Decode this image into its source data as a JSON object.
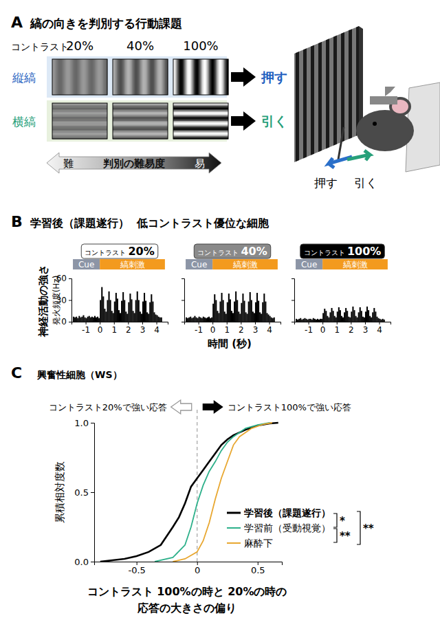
{
  "panel_a": {
    "label": "A",
    "title": "縞の向きを判別する行動課題",
    "contrast_label": "コントラスト",
    "contrasts": [
      {
        "value": 20,
        "label": "20%"
      },
      {
        "value": 40,
        "label": "40%"
      },
      {
        "value": 100,
        "label": "100%"
      }
    ],
    "rows": [
      {
        "label": "縦縞",
        "action": "押す",
        "orientation": "vertical"
      },
      {
        "label": "横縞",
        "action": "引く",
        "orientation": "horizontal"
      }
    ],
    "difficulty": {
      "hard": "難",
      "label": "判別の難易度",
      "easy": "易"
    },
    "mouse_actions": [
      "押す",
      "引く"
    ]
  },
  "panel_b": {
    "label": "B",
    "title": "学習後（課題遂行）  低コントラスト優位な細胞",
    "ylabel": "神経活動の強さ",
    "ylabel_unit": "発火頻度(Hz)",
    "xlabel": "時間 (秒)"
  },
  "panel_c": {
    "label": "C"
  },
  "chart_data": [
    {
      "type": "histogram",
      "title": "コントラスト 20%",
      "color": "#000000",
      "bins": [
        -1.9,
        -1.8,
        -1.7,
        -1.6,
        -1.5,
        -1.4,
        -1.3,
        -1.2,
        -1.1,
        -1.0,
        -0.9,
        -0.8,
        -0.7,
        -0.6,
        -0.5,
        -0.4,
        -0.3,
        -0.2,
        -0.1,
        0,
        0.1,
        0.2,
        0.3,
        0.4,
        0.5,
        0.6,
        0.7,
        0.8,
        0.9,
        1.0,
        1.1,
        1.2,
        1.3,
        1.4,
        1.5,
        1.6,
        1.7,
        1.8,
        1.9,
        2.0,
        2.1,
        2.2,
        2.3,
        2.4,
        2.5,
        2.6,
        2.7,
        2.8,
        2.9,
        3.0,
        3.1,
        3.2,
        3.3,
        3.4,
        3.5,
        3.6,
        3.7,
        3.8,
        3.9,
        4.0,
        4.1,
        4.2,
        4.3,
        4.4
      ],
      "values": [
        7,
        6,
        7,
        5,
        8,
        6,
        7,
        9,
        6,
        5,
        7,
        8,
        6,
        7,
        6,
        8,
        6,
        7,
        5,
        30,
        48,
        35,
        18,
        14,
        30,
        42,
        30,
        15,
        12,
        28,
        40,
        32,
        16,
        12,
        29,
        41,
        30,
        14,
        11,
        27,
        39,
        31,
        15,
        12,
        30,
        42,
        30,
        14,
        11,
        28,
        40,
        29,
        13,
        11,
        27,
        38,
        28,
        13,
        10,
        9,
        7,
        6,
        6
      ],
      "epochs": [
        {
          "label": "Cue",
          "start": -1.9,
          "end": 0
        },
        {
          "label": "縞刺激",
          "start": 0,
          "end": 4.6
        }
      ],
      "xlim": [
        -2,
        4.8
      ],
      "xticks": [
        -1,
        0,
        1,
        2,
        3,
        4
      ],
      "ylim": [
        0,
        60
      ],
      "yticks": [
        0,
        30,
        60
      ]
    },
    {
      "type": "histogram",
      "title": "コントラスト 40%",
      "color": "#000000",
      "bins": [
        -1.9,
        -1.8,
        -1.7,
        -1.6,
        -1.5,
        -1.4,
        -1.3,
        -1.2,
        -1.1,
        -1.0,
        -0.9,
        -0.8,
        -0.7,
        -0.6,
        -0.5,
        -0.4,
        -0.3,
        -0.2,
        -0.1,
        0,
        0.1,
        0.2,
        0.3,
        0.4,
        0.5,
        0.6,
        0.7,
        0.8,
        0.9,
        1.0,
        1.1,
        1.2,
        1.3,
        1.4,
        1.5,
        1.6,
        1.7,
        1.8,
        1.9,
        2.0,
        2.1,
        2.2,
        2.3,
        2.4,
        2.5,
        2.6,
        2.7,
        2.8,
        2.9,
        3.0,
        3.1,
        3.2,
        3.3,
        3.4,
        3.5,
        3.6,
        3.7,
        3.8,
        3.9,
        4.0,
        4.1,
        4.2,
        4.3,
        4.4
      ],
      "values": [
        6,
        5,
        6,
        7,
        5,
        6,
        8,
        6,
        5,
        7,
        6,
        5,
        7,
        6,
        5,
        6,
        7,
        5,
        6,
        25,
        38,
        30,
        15,
        12,
        28,
        40,
        30,
        14,
        11,
        27,
        39,
        31,
        15,
        12,
        28,
        42,
        30,
        14,
        11,
        26,
        39,
        29,
        13,
        11,
        28,
        41,
        30,
        14,
        12,
        27,
        40,
        29,
        13,
        11,
        27,
        39,
        28,
        12,
        10,
        8,
        6,
        5,
        6
      ],
      "epochs": [
        {
          "label": "Cue",
          "start": -1.9,
          "end": 0
        },
        {
          "label": "縞刺激",
          "start": 0,
          "end": 4.6
        }
      ],
      "xlim": [
        -2,
        4.8
      ],
      "xticks": [
        -1,
        0,
        1,
        2,
        3,
        4
      ],
      "ylim": [
        0,
        60
      ],
      "yticks": [
        0,
        30,
        60
      ],
      "tick_labels": "x"
    },
    {
      "type": "histogram",
      "title": "コントラスト 100%",
      "color": "#000000",
      "bins": [
        -1.9,
        -1.8,
        -1.7,
        -1.6,
        -1.5,
        -1.4,
        -1.3,
        -1.2,
        -1.1,
        -1.0,
        -0.9,
        -0.8,
        -0.7,
        -0.6,
        -0.5,
        -0.4,
        -0.3,
        -0.2,
        -0.1,
        0,
        0.1,
        0.2,
        0.3,
        0.4,
        0.5,
        0.6,
        0.7,
        0.8,
        0.9,
        1.0,
        1.1,
        1.2,
        1.3,
        1.4,
        1.5,
        1.6,
        1.7,
        1.8,
        1.9,
        2.0,
        2.1,
        2.2,
        2.3,
        2.4,
        2.5,
        2.6,
        2.7,
        2.8,
        2.9,
        3.0,
        3.1,
        3.2,
        3.3,
        3.4,
        3.5,
        3.6,
        3.7,
        3.8,
        3.9,
        4.0,
        4.1,
        4.2,
        4.3,
        4.4
      ],
      "values": [
        4,
        3,
        4,
        5,
        3,
        4,
        5,
        4,
        3,
        4,
        4,
        3,
        5,
        4,
        3,
        4,
        3,
        4,
        4,
        12,
        18,
        15,
        8,
        6,
        13,
        19,
        15,
        8,
        6,
        14,
        20,
        16,
        8,
        6,
        13,
        19,
        15,
        7,
        6,
        14,
        21,
        16,
        8,
        6,
        13,
        20,
        15,
        7,
        6,
        14,
        21,
        16,
        8,
        6,
        13,
        19,
        14,
        7,
        5,
        4,
        3,
        4,
        3
      ],
      "epochs": [
        {
          "label": "Cue",
          "start": -1.9,
          "end": 0
        },
        {
          "label": "縞刺激",
          "start": 0,
          "end": 4.6
        }
      ],
      "xlim": [
        -2,
        4.8
      ],
      "xticks": [
        -1,
        0,
        1,
        2,
        3,
        4
      ],
      "ylim": [
        0,
        60
      ],
      "yticks": [
        0,
        30,
        60
      ],
      "tick_labels": "x"
    },
    {
      "type": "line",
      "title": "興奮性細胞（WS）",
      "xlabel": "コントラスト 100%の時と 20%の時の\n応答の大きさの偏り",
      "ylabel": "累積相対度数",
      "annotations": [
        "コントラスト20%で強い応答",
        "コントラスト100%で強い応答"
      ],
      "reference_x": 0,
      "series": [
        {
          "name": "学習後（課題遂行）",
          "color": "#000000",
          "line_style": "solid",
          "x": [
            -0.8,
            -0.7,
            -0.6,
            -0.5,
            -0.4,
            -0.3,
            -0.2,
            -0.15,
            -0.1,
            -0.05,
            0,
            0.05,
            0.1,
            0.15,
            0.2,
            0.25,
            0.3,
            0.4,
            0.5,
            0.6,
            0.67
          ],
          "values": [
            0,
            0.01,
            0.02,
            0.04,
            0.07,
            0.12,
            0.25,
            0.32,
            0.42,
            0.54,
            0.6,
            0.66,
            0.72,
            0.78,
            0.84,
            0.88,
            0.91,
            0.95,
            0.98,
            0.995,
            1.0
          ]
        },
        {
          "name": "学習前（受動視覚）",
          "color": "#2db08a",
          "line_style": "solid",
          "x": [
            -0.35,
            -0.2,
            -0.1,
            -0.05,
            0,
            0.05,
            0.1,
            0.15,
            0.2,
            0.25,
            0.3,
            0.4,
            0.5,
            0.6
          ],
          "values": [
            0,
            0.03,
            0.12,
            0.25,
            0.42,
            0.55,
            0.65,
            0.72,
            0.8,
            0.86,
            0.9,
            0.96,
            0.985,
            1.0
          ]
        },
        {
          "name": "麻酔下",
          "color": "#e8a730",
          "line_style": "solid",
          "x": [
            -0.2,
            -0.1,
            0,
            0.05,
            0.1,
            0.15,
            0.2,
            0.25,
            0.3,
            0.35,
            0.45,
            0.55,
            0.62
          ],
          "values": [
            0,
            0.02,
            0.07,
            0.15,
            0.28,
            0.45,
            0.6,
            0.72,
            0.84,
            0.9,
            0.96,
            0.99,
            1.0
          ]
        }
      ],
      "significance": [
        {
          "pair": [
            0,
            1
          ],
          "label": "*"
        },
        {
          "pair": [
            1,
            2
          ],
          "label": "**"
        },
        {
          "pair": [
            0,
            2
          ],
          "label": "**"
        }
      ],
      "legend": "lower right",
      "xlim": [
        -0.85,
        0.7
      ],
      "xticks": [
        -0.5,
        0,
        0.5
      ],
      "ylim": [
        0,
        1
      ],
      "yticks": [
        {
          "value": 0,
          "label": "0.0"
        },
        {
          "value": 0.5,
          "label": "0.5"
        },
        {
          "value": 1,
          "label": "1.0"
        }
      ]
    }
  ]
}
